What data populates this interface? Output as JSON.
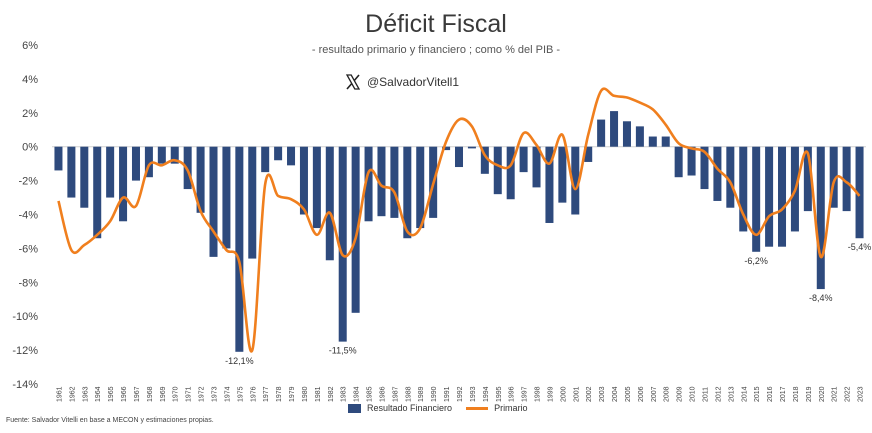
{
  "chart_data": {
    "type": "bar",
    "title": "Déficit Fiscal",
    "subtitle": "- resultado primario y financiero ; como % del PIB -",
    "handle": "@SalvadorVitell1",
    "source": "Fuente: Salvador Vitelli en base a MECON y estimaciones propias.",
    "yticks": [
      "6%",
      "4%",
      "2%",
      "0%",
      "-2%",
      "-4%",
      "-6%",
      "-8%",
      "-10%",
      "-12%",
      "-14%"
    ],
    "ylim": [
      -14,
      6
    ],
    "categories": [
      "1961",
      "1962",
      "1963",
      "1964",
      "1965",
      "1966",
      "1967",
      "1968",
      "1969",
      "1970",
      "1971",
      "1972",
      "1973",
      "1974",
      "1975",
      "1976",
      "1977",
      "1978",
      "1979",
      "1980",
      "1981",
      "1982",
      "1983",
      "1984",
      "1985",
      "1986",
      "1987",
      "1988",
      "1989",
      "1990",
      "1991",
      "1992",
      "1993",
      "1994",
      "1995",
      "1996",
      "1997",
      "1998",
      "1999",
      "2000",
      "2001",
      "2002",
      "2003",
      "2004",
      "2005",
      "2006",
      "2007",
      "2008",
      "2009",
      "2010",
      "2011",
      "2012",
      "2013",
      "2014",
      "2015",
      "2016",
      "2017",
      "2018",
      "2019",
      "2020",
      "2021",
      "2022",
      "2023"
    ],
    "series": [
      {
        "name": "Resultado Financiero",
        "type": "bar",
        "color": "#2e4a7d",
        "values": [
          -1.4,
          -3.0,
          -3.6,
          -5.4,
          -3.0,
          -4.4,
          -2.0,
          -1.8,
          -1.0,
          -1.0,
          -2.5,
          -3.9,
          -6.5,
          -6.0,
          -12.1,
          -6.6,
          -1.5,
          -0.8,
          -1.1,
          -4.0,
          -4.8,
          -6.7,
          -11.5,
          -9.8,
          -4.4,
          -4.1,
          -4.2,
          -5.4,
          -4.8,
          -4.2,
          -0.2,
          -1.2,
          -0.1,
          -1.6,
          -2.8,
          -3.1,
          -1.5,
          -2.4,
          -4.5,
          -3.3,
          -4.0,
          -0.9,
          1.6,
          2.1,
          1.5,
          1.2,
          0.6,
          0.6,
          -1.8,
          -1.7,
          -2.5,
          -3.2,
          -3.6,
          -5.0,
          -6.2,
          -5.9,
          -5.9,
          -5.0,
          -3.8,
          -8.4,
          -3.6,
          -3.8,
          -5.4
        ]
      },
      {
        "name": "Primario",
        "type": "line",
        "color": "#f07f1e",
        "values": [
          -3.2,
          -6.1,
          -5.8,
          -5.2,
          -4.4,
          -3.0,
          -3.5,
          -1.1,
          -1.1,
          -0.8,
          -1.4,
          -3.8,
          -5.0,
          -6.1,
          -6.8,
          -12.0,
          -2.2,
          -2.9,
          -3.1,
          -3.7,
          -5.2,
          -3.9,
          -6.4,
          -5.4,
          -1.5,
          -2.3,
          -2.7,
          -5.0,
          -4.8,
          -2.2,
          0.3,
          1.6,
          1.2,
          -0.5,
          -1.1,
          -1.1,
          0.8,
          0.1,
          -1.0,
          0.7,
          -2.5,
          0.7,
          3.3,
          3.0,
          2.9,
          2.6,
          2.2,
          1.3,
          0.2,
          -0.1,
          -0.3,
          -1.3,
          -2.1,
          -4.0,
          -5.2,
          -4.1,
          -3.7,
          -2.6,
          -0.4,
          -6.5,
          -2.1,
          -2.1,
          -2.9
        ]
      }
    ],
    "annotations": [
      {
        "index": 14,
        "text": "-12,1%"
      },
      {
        "index": 22,
        "text": "-11,5%"
      },
      {
        "index": 54,
        "text": "-6,2%"
      },
      {
        "index": 59,
        "text": "-8,4%"
      },
      {
        "index": 62,
        "text": "-5,4%"
      }
    ],
    "legend": [
      "Resultado Financiero",
      "Primario"
    ],
    "legend_position": "bottom",
    "grid": false
  }
}
